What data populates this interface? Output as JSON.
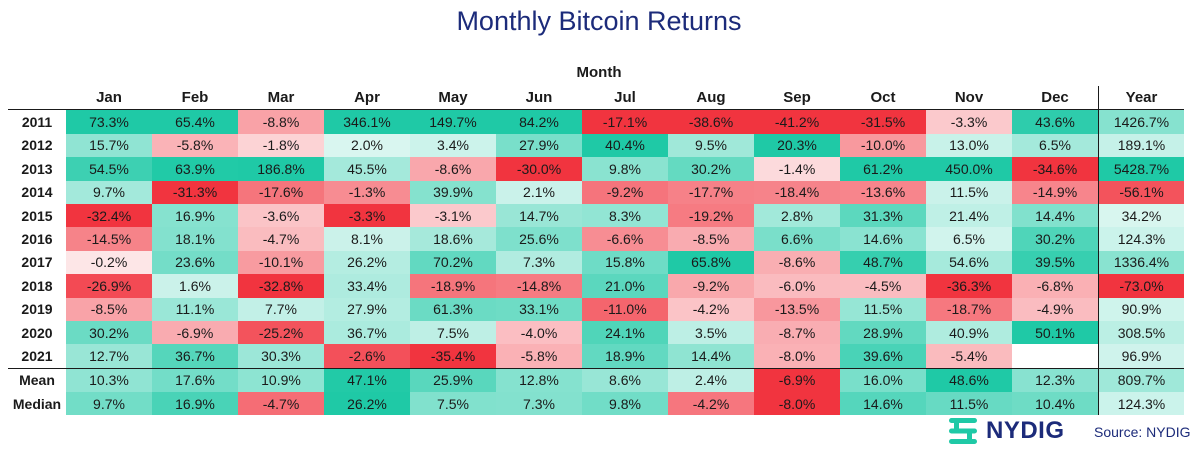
{
  "title": "Monthly Bitcoin Returns",
  "column_axis_label": "Month",
  "source": "Source: NYDIG",
  "logo_text": "NYDIG",
  "colors": {
    "positive": "#1fc9a6",
    "negative": "#f1343f",
    "title": "#1c2b7a"
  },
  "chart_data": {
    "type": "table",
    "title": "Monthly Bitcoin Returns",
    "columns": [
      "Jan",
      "Feb",
      "Mar",
      "Apr",
      "May",
      "Jun",
      "Jul",
      "Aug",
      "Sep",
      "Oct",
      "Nov",
      "Dec",
      "Year"
    ],
    "rows": [
      {
        "label": "2011",
        "values": [
          "73.3%",
          "65.4%",
          "-8.8%",
          "346.1%",
          "149.7%",
          "84.2%",
          "-17.1%",
          "-38.6%",
          "-41.2%",
          "-31.5%",
          "-3.3%",
          "43.6%",
          "1426.7%"
        ]
      },
      {
        "label": "2012",
        "values": [
          "15.7%",
          "-5.8%",
          "-1.8%",
          "2.0%",
          "3.4%",
          "27.9%",
          "40.4%",
          "9.5%",
          "20.3%",
          "-10.0%",
          "13.0%",
          "6.5%",
          "189.1%"
        ]
      },
      {
        "label": "2013",
        "values": [
          "54.5%",
          "63.9%",
          "186.8%",
          "45.5%",
          "-8.6%",
          "-30.0%",
          "9.8%",
          "30.2%",
          "-1.4%",
          "61.2%",
          "450.0%",
          "-34.6%",
          "5428.7%"
        ]
      },
      {
        "label": "2014",
        "values": [
          "9.7%",
          "-31.3%",
          "-17.6%",
          "-1.3%",
          "39.9%",
          "2.1%",
          "-9.2%",
          "-17.7%",
          "-18.4%",
          "-13.6%",
          "11.5%",
          "-14.9%",
          "-56.1%"
        ]
      },
      {
        "label": "2015",
        "values": [
          "-32.4%",
          "16.9%",
          "-3.6%",
          "-3.3%",
          "-3.1%",
          "14.7%",
          "8.3%",
          "-19.2%",
          "2.8%",
          "31.3%",
          "21.4%",
          "14.4%",
          "34.2%"
        ]
      },
      {
        "label": "2016",
        "values": [
          "-14.5%",
          "18.1%",
          "-4.7%",
          "8.1%",
          "18.6%",
          "25.6%",
          "-6.6%",
          "-8.5%",
          "6.6%",
          "14.6%",
          "6.5%",
          "30.2%",
          "124.3%"
        ]
      },
      {
        "label": "2017",
        "values": [
          "-0.2%",
          "23.6%",
          "-10.1%",
          "26.2%",
          "70.2%",
          "7.3%",
          "15.8%",
          "65.8%",
          "-8.6%",
          "48.7%",
          "54.6%",
          "39.5%",
          "1336.4%"
        ]
      },
      {
        "label": "2018",
        "values": [
          "-26.9%",
          "1.6%",
          "-32.8%",
          "33.4%",
          "-18.9%",
          "-14.8%",
          "21.0%",
          "-9.2%",
          "-6.0%",
          "-4.5%",
          "-36.3%",
          "-6.8%",
          "-73.0%"
        ]
      },
      {
        "label": "2019",
        "values": [
          "-8.5%",
          "11.1%",
          "7.7%",
          "27.9%",
          "61.3%",
          "33.1%",
          "-11.0%",
          "-4.2%",
          "-13.5%",
          "11.5%",
          "-18.7%",
          "-4.9%",
          "90.9%"
        ]
      },
      {
        "label": "2020",
        "values": [
          "30.2%",
          "-6.9%",
          "-25.2%",
          "36.7%",
          "7.5%",
          "-4.0%",
          "24.1%",
          "3.5%",
          "-8.7%",
          "28.9%",
          "40.9%",
          "50.1%",
          "308.5%"
        ]
      },
      {
        "label": "2021",
        "values": [
          "12.7%",
          "36.7%",
          "30.3%",
          "-2.6%",
          "-35.4%",
          "-5.8%",
          "18.9%",
          "14.4%",
          "-8.0%",
          "39.6%",
          "-5.4%",
          "",
          "96.9%"
        ]
      }
    ],
    "summary_rows": [
      {
        "label": "Mean",
        "values": [
          "10.3%",
          "17.6%",
          "10.9%",
          "47.1%",
          "25.9%",
          "12.8%",
          "8.6%",
          "2.4%",
          "-6.9%",
          "16.0%",
          "48.6%",
          "12.3%",
          "809.7%"
        ]
      },
      {
        "label": "Median",
        "values": [
          "9.7%",
          "16.9%",
          "-4.7%",
          "26.2%",
          "7.5%",
          "7.3%",
          "9.8%",
          "-4.2%",
          "-8.0%",
          "14.6%",
          "11.5%",
          "10.4%",
          "124.3%"
        ]
      }
    ]
  }
}
